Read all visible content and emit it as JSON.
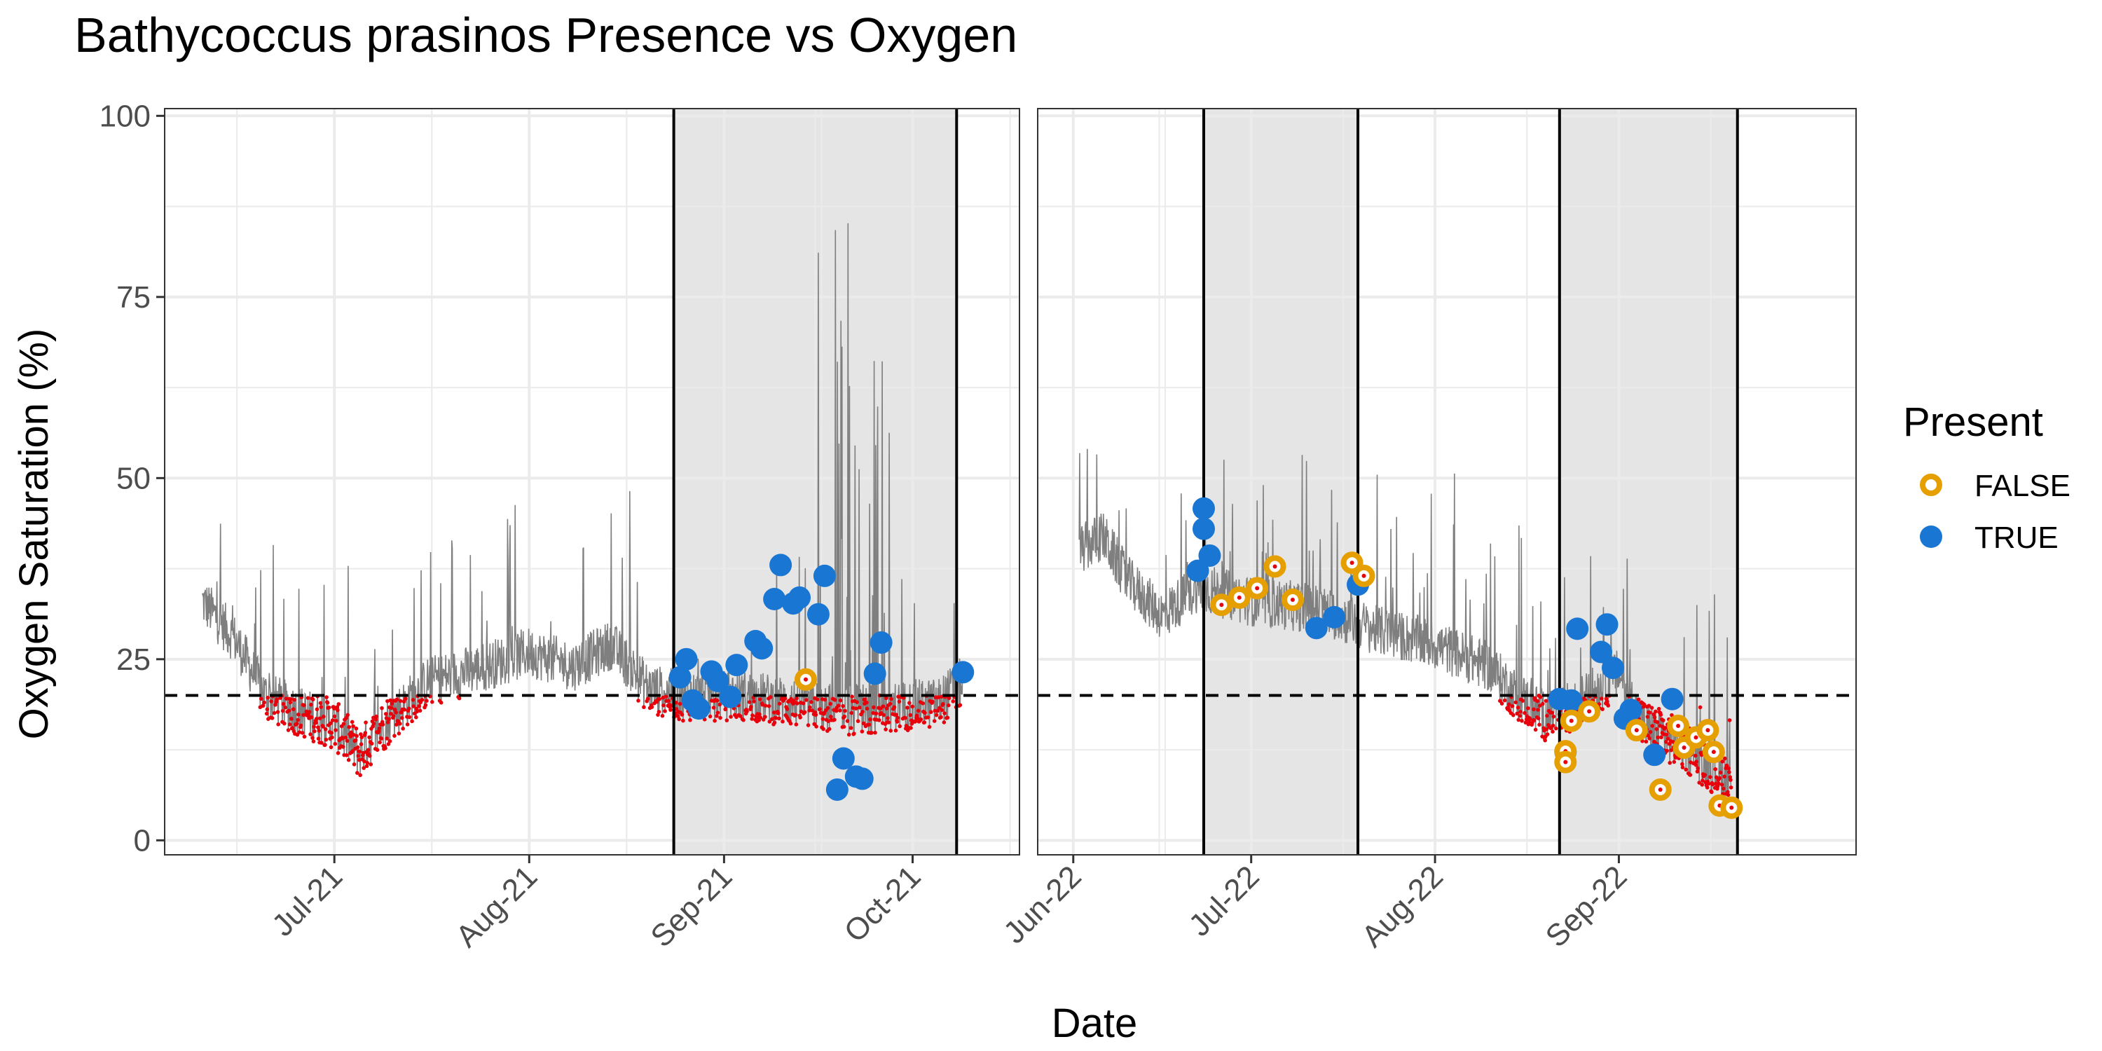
{
  "chart_data": {
    "type": "scatter",
    "title": "Bathycoccus prasinos Presence vs Oxygen",
    "xlabel": "Date",
    "ylabel": "Oxygen Saturation (%)",
    "ylim": [
      -2,
      101
    ],
    "y_ticks": [
      0,
      25,
      50,
      75,
      100
    ],
    "threshold": 20,
    "grid": true,
    "legend": {
      "title": "Present",
      "position": "right",
      "entries": [
        {
          "label": "FALSE",
          "color": "#E69F00"
        },
        {
          "label": "TRUE",
          "color": "#1976D2"
        }
      ]
    },
    "colors": {
      "oxygen_line": "#7f7f7f",
      "hypoxic_points": "#e8000b",
      "false": "#E69F00",
      "true": "#1976D2",
      "shade": "#e5e5e5",
      "grid": "#ebebeb",
      "threshold_line": "#000000"
    },
    "panels": [
      {
        "xlim": [
          "2021-06-04",
          "2021-10-18"
        ],
        "x_ticks": [
          {
            "date": "2021-07-01",
            "label": "Jul-21"
          },
          {
            "date": "2021-08-01",
            "label": "Aug-21"
          },
          {
            "date": "2021-09-01",
            "label": "Sep-21"
          },
          {
            "date": "2021-10-01",
            "label": "Oct-21"
          }
        ],
        "shaded": [
          {
            "start": "2021-08-24",
            "end": "2021-10-08"
          }
        ],
        "series": [
          {
            "name": "TRUE",
            "points": [
              {
                "x": "2021-08-25",
                "y": 22.5
              },
              {
                "x": "2021-08-26",
                "y": 25.0
              },
              {
                "x": "2021-08-27",
                "y": 19.3
              },
              {
                "x": "2021-08-28",
                "y": 18.2
              },
              {
                "x": "2021-08-30",
                "y": 23.3
              },
              {
                "x": "2021-08-31",
                "y": 22.0
              },
              {
                "x": "2021-09-02",
                "y": 19.8
              },
              {
                "x": "2021-09-03",
                "y": 24.2
              },
              {
                "x": "2021-09-06",
                "y": 27.5
              },
              {
                "x": "2021-09-07",
                "y": 26.5
              },
              {
                "x": "2021-09-09",
                "y": 33.3
              },
              {
                "x": "2021-09-10",
                "y": 38.0
              },
              {
                "x": "2021-09-12",
                "y": 32.7
              },
              {
                "x": "2021-09-13",
                "y": 33.5
              },
              {
                "x": "2021-09-16",
                "y": 31.2
              },
              {
                "x": "2021-09-17",
                "y": 36.5
              },
              {
                "x": "2021-09-19",
                "y": 7.0
              },
              {
                "x": "2021-09-20",
                "y": 11.3
              },
              {
                "x": "2021-09-22",
                "y": 8.8
              },
              {
                "x": "2021-09-23",
                "y": 8.5
              },
              {
                "x": "2021-09-25",
                "y": 23.0
              },
              {
                "x": "2021-09-26",
                "y": 27.3
              },
              {
                "x": "2021-10-09",
                "y": 23.2
              }
            ]
          },
          {
            "name": "FALSE",
            "points": [
              {
                "x": "2021-09-14",
                "y": 22.2
              }
            ]
          }
        ]
      },
      {
        "xlim": [
          "2022-05-26",
          "2022-10-11"
        ],
        "x_ticks": [
          {
            "date": "2022-06-01",
            "label": "Jun-22"
          },
          {
            "date": "2022-07-01",
            "label": "Jul-22"
          },
          {
            "date": "2022-08-01",
            "label": "Aug-22"
          },
          {
            "date": "2022-09-01",
            "label": "Sep-22"
          }
        ],
        "shaded": [
          {
            "start": "2022-06-23",
            "end": "2022-07-19"
          },
          {
            "start": "2022-08-22",
            "end": "2022-09-21"
          }
        ],
        "series": [
          {
            "name": "TRUE",
            "points": [
              {
                "x": "2022-06-22",
                "y": 37.2
              },
              {
                "x": "2022-06-23",
                "y": 45.8
              },
              {
                "x": "2022-06-23",
                "y": 43.0
              },
              {
                "x": "2022-06-24",
                "y": 39.3
              },
              {
                "x": "2022-07-12",
                "y": 29.3
              },
              {
                "x": "2022-07-15",
                "y": 30.8
              },
              {
                "x": "2022-07-19",
                "y": 35.3
              },
              {
                "x": "2022-08-22",
                "y": 19.5
              },
              {
                "x": "2022-08-23",
                "y": 12.2
              },
              {
                "x": "2022-08-24",
                "y": 19.3
              },
              {
                "x": "2022-08-25",
                "y": 29.2
              },
              {
                "x": "2022-08-29",
                "y": 26.0
              },
              {
                "x": "2022-08-30",
                "y": 29.8
              },
              {
                "x": "2022-08-31",
                "y": 23.8
              },
              {
                "x": "2022-09-02",
                "y": 16.8
              },
              {
                "x": "2022-09-03",
                "y": 18.0
              },
              {
                "x": "2022-09-07",
                "y": 11.8
              },
              {
                "x": "2022-09-10",
                "y": 19.5
              }
            ]
          },
          {
            "name": "FALSE",
            "points": [
              {
                "x": "2022-06-26",
                "y": 32.5
              },
              {
                "x": "2022-06-29",
                "y": 33.5
              },
              {
                "x": "2022-07-02",
                "y": 34.8
              },
              {
                "x": "2022-07-05",
                "y": 37.8
              },
              {
                "x": "2022-07-08",
                "y": 33.2
              },
              {
                "x": "2022-07-18",
                "y": 38.3
              },
              {
                "x": "2022-07-20",
                "y": 36.5
              },
              {
                "x": "2022-08-23",
                "y": 12.3
              },
              {
                "x": "2022-08-23",
                "y": 10.8
              },
              {
                "x": "2022-08-24",
                "y": 16.5
              },
              {
                "x": "2022-08-27",
                "y": 17.8
              },
              {
                "x": "2022-09-04",
                "y": 15.2
              },
              {
                "x": "2022-09-08",
                "y": 7.0
              },
              {
                "x": "2022-09-11",
                "y": 15.8
              },
              {
                "x": "2022-09-12",
                "y": 12.8
              },
              {
                "x": "2022-09-14",
                "y": 14.2
              },
              {
                "x": "2022-09-16",
                "y": 15.2
              },
              {
                "x": "2022-09-17",
                "y": 12.2
              },
              {
                "x": "2022-09-18",
                "y": 4.8
              },
              {
                "x": "2022-09-20",
                "y": 4.5
              }
            ]
          }
        ]
      }
    ]
  }
}
